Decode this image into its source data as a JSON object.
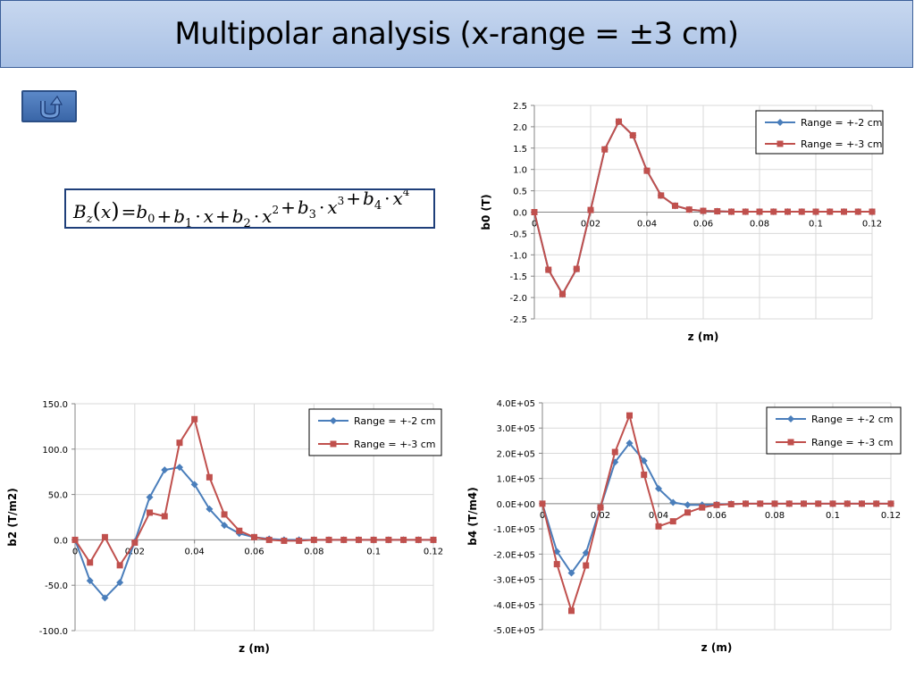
{
  "slide": {
    "title": "Multipolar analysis (x-range = ±3 cm)",
    "back_button_icon": "u-turn-back-arrow-icon"
  },
  "formula": {
    "variable": "B",
    "subscript": "z",
    "argument": "x",
    "terms": [
      {
        "coef": "b",
        "index": "0",
        "power": ""
      },
      {
        "coef": "b",
        "index": "1",
        "power": "1"
      },
      {
        "coef": "b",
        "index": "2",
        "power": "2"
      },
      {
        "coef": "b",
        "index": "3",
        "power": "3"
      },
      {
        "coef": "b",
        "index": "4",
        "power": "4"
      }
    ]
  },
  "colors": {
    "series_range2": "#4a7ebb",
    "series_range3": "#c0504d",
    "title_bar": "#b8cdea",
    "grid": "#d9d9d9"
  },
  "chart_data": [
    {
      "id": "b0",
      "type": "line",
      "xlabel": "z (m)",
      "ylabel": "b0 (T)",
      "xlim": [
        0,
        0.12
      ],
      "xticks": [
        0,
        0.02,
        0.04,
        0.06,
        0.08,
        0.1,
        0.12
      ],
      "xtick_labels": [
        "0",
        "0.02",
        "0.04",
        "0.06",
        "0.08",
        "0.1",
        "0.12"
      ],
      "ylim": [
        -2.5,
        2.5
      ],
      "yticks": [
        2.5,
        2.0,
        1.5,
        1.0,
        0.5,
        0.0,
        -0.5,
        -1.0,
        -1.5,
        -2.0,
        -2.5
      ],
      "ytick_labels": [
        "2.5",
        "2.0",
        "1.5",
        "1.0",
        "0.5",
        "0.0",
        "-0.5",
        "-1.0",
        "-1.5",
        "-2.0",
        "-2.5"
      ],
      "grid": true,
      "legend_position": "top-right",
      "series": [
        {
          "name": "Range = +-2 cm",
          "marker": "diamond",
          "x": [
            0,
            0.005,
            0.01,
            0.015,
            0.02,
            0.025,
            0.03,
            0.035,
            0.04,
            0.045,
            0.05,
            0.055,
            0.06,
            0.065,
            0.07,
            0.075,
            0.08,
            0.085,
            0.09,
            0.095,
            0.1,
            0.105,
            0.11,
            0.115,
            0.12
          ],
          "y": [
            0,
            -1.35,
            -1.92,
            -1.33,
            0.05,
            1.47,
            2.12,
            1.8,
            0.97,
            0.39,
            0.15,
            0.06,
            0.03,
            0.02,
            0.01,
            0.01,
            0.01,
            0.01,
            0.01,
            0.01,
            0.01,
            0.01,
            0.01,
            0.01,
            0.01
          ]
        },
        {
          "name": "Range = +-3 cm",
          "marker": "square",
          "x": [
            0,
            0.005,
            0.01,
            0.015,
            0.02,
            0.025,
            0.03,
            0.035,
            0.04,
            0.045,
            0.05,
            0.055,
            0.06,
            0.065,
            0.07,
            0.075,
            0.08,
            0.085,
            0.09,
            0.095,
            0.1,
            0.105,
            0.11,
            0.115,
            0.12
          ],
          "y": [
            0,
            -1.35,
            -1.92,
            -1.33,
            0.05,
            1.47,
            2.12,
            1.8,
            0.97,
            0.39,
            0.15,
            0.06,
            0.03,
            0.02,
            0.01,
            0.01,
            0.01,
            0.01,
            0.01,
            0.01,
            0.01,
            0.01,
            0.01,
            0.01,
            0.01
          ]
        }
      ]
    },
    {
      "id": "b2",
      "type": "line",
      "xlabel": "z (m)",
      "ylabel": "b2 (T/m2)",
      "xlim": [
        0,
        0.12
      ],
      "xticks": [
        0,
        0.02,
        0.04,
        0.06,
        0.08,
        0.1,
        0.12
      ],
      "xtick_labels": [
        "0",
        "0.02",
        "0.04",
        "0.06",
        "0.08",
        "0.1",
        "0.12"
      ],
      "ylim": [
        -100,
        150
      ],
      "yticks": [
        150,
        100,
        50,
        0,
        -50,
        -100
      ],
      "ytick_labels": [
        "150.0",
        "100.0",
        "50.0",
        "0.0",
        "-50.0",
        "-100.0"
      ],
      "grid": true,
      "legend_position": "top-right",
      "series": [
        {
          "name": "Range = +-2 cm",
          "marker": "diamond",
          "x": [
            0,
            0.005,
            0.01,
            0.015,
            0.02,
            0.025,
            0.03,
            0.035,
            0.04,
            0.045,
            0.05,
            0.055,
            0.06,
            0.065,
            0.07,
            0.075,
            0.08,
            0.085,
            0.09,
            0.095,
            0.1,
            0.105,
            0.11,
            0.115,
            0.12
          ],
          "y": [
            0,
            -45,
            -64,
            -47,
            -2,
            47,
            77,
            80,
            61,
            34,
            16,
            7,
            3,
            1,
            0,
            0,
            0,
            0,
            0,
            0,
            0,
            0,
            0,
            0,
            0
          ]
        },
        {
          "name": "Range = +-3 cm",
          "marker": "square",
          "x": [
            0,
            0.005,
            0.01,
            0.015,
            0.02,
            0.025,
            0.03,
            0.035,
            0.04,
            0.045,
            0.05,
            0.055,
            0.06,
            0.065,
            0.07,
            0.075,
            0.08,
            0.085,
            0.09,
            0.095,
            0.1,
            0.105,
            0.11,
            0.115,
            0.12
          ],
          "y": [
            0,
            -25,
            3,
            -28,
            -3,
            30,
            26,
            107,
            133,
            69,
            28,
            10,
            3,
            0,
            -1,
            -1,
            0,
            0,
            0,
            0,
            0,
            0,
            0,
            0,
            0
          ]
        }
      ]
    },
    {
      "id": "b4",
      "type": "line",
      "xlabel": "z (m)",
      "ylabel": "b4 (T/m4)",
      "xlim": [
        0,
        0.12
      ],
      "xticks": [
        0,
        0.02,
        0.04,
        0.06,
        0.08,
        0.1,
        0.12
      ],
      "xtick_labels": [
        "0",
        "0.02",
        "0.04",
        "0.06",
        "0.08",
        "0.1",
        "0.12"
      ],
      "ylim": [
        -500000,
        400000
      ],
      "yticks": [
        400000,
        300000,
        200000,
        100000,
        0,
        -100000,
        -200000,
        -300000,
        -400000,
        -500000
      ],
      "ytick_labels": [
        "4.0E+05",
        "3.0E+05",
        "2.0E+05",
        "1.0E+05",
        "0.0E+00",
        "-1.0E+05",
        "-2.0E+05",
        "-3.0E+05",
        "-4.0E+05",
        "-5.0E+05"
      ],
      "grid": true,
      "legend_position": "top-right",
      "series": [
        {
          "name": "Range = +-2 cm",
          "marker": "diamond",
          "x": [
            0,
            0.005,
            0.01,
            0.015,
            0.02,
            0.025,
            0.03,
            0.035,
            0.04,
            0.045,
            0.05,
            0.055,
            0.06,
            0.065,
            0.07,
            0.075,
            0.08,
            0.085,
            0.09,
            0.095,
            0.1,
            0.105,
            0.11,
            0.115,
            0.12
          ],
          "y": [
            0,
            -190000,
            -275000,
            -195000,
            -15000,
            165000,
            240000,
            170000,
            60000,
            5000,
            -5000,
            -5000,
            -3000,
            -1000,
            0,
            0,
            0,
            0,
            0,
            0,
            0,
            0,
            0,
            0,
            0
          ]
        },
        {
          "name": "Range = +-3 cm",
          "marker": "square",
          "x": [
            0,
            0.005,
            0.01,
            0.015,
            0.02,
            0.025,
            0.03,
            0.035,
            0.04,
            0.045,
            0.05,
            0.055,
            0.06,
            0.065,
            0.07,
            0.075,
            0.08,
            0.085,
            0.09,
            0.095,
            0.1,
            0.105,
            0.11,
            0.115,
            0.12
          ],
          "y": [
            0,
            -240000,
            -425000,
            -245000,
            -15000,
            205000,
            350000,
            115000,
            -90000,
            -70000,
            -35000,
            -15000,
            -5000,
            -2000,
            0,
            0,
            0,
            0,
            0,
            0,
            0,
            0,
            0,
            0,
            0
          ]
        }
      ]
    }
  ]
}
